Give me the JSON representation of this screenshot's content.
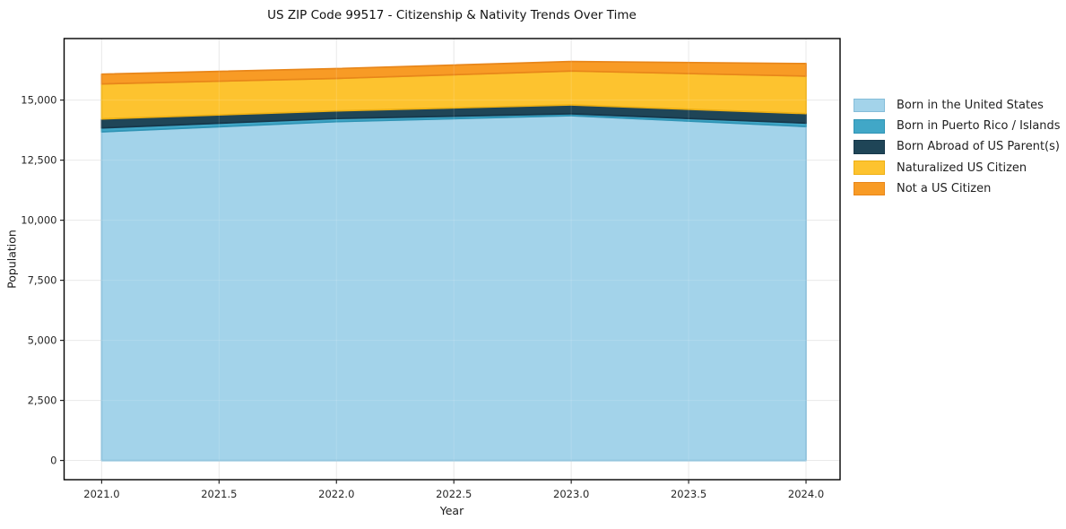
{
  "figure": {
    "title": "US ZIP Code 99517 - Citizenship & Nativity Trends Over Time"
  },
  "chart_data": {
    "type": "area",
    "stacked": true,
    "title": "US ZIP Code 99517 - Citizenship & Nativity Trends Over Time",
    "xlabel": "Year",
    "ylabel": "Population",
    "x": [
      2021,
      2022,
      2023,
      2024
    ],
    "series": [
      {
        "name": "Born in the United States",
        "values": [
          13680,
          14100,
          14350,
          13900
        ],
        "fill": "#a3d3ea",
        "edge": "#85bdd9"
      },
      {
        "name": "Born in Puerto Rico / Islands",
        "values": [
          160,
          130,
          80,
          140
        ],
        "fill": "#41a7c7",
        "edge": "#2f94b5"
      },
      {
        "name": "Born Abroad of US Parent(s)",
        "values": [
          375,
          320,
          370,
          395
        ],
        "fill": "#1f4557",
        "edge": "#16374a"
      },
      {
        "name": "Naturalized US Citizen",
        "values": [
          1455,
          1350,
          1410,
          1560
        ],
        "fill": "#fdc32f",
        "edge": "#eeb013"
      },
      {
        "name": "Not a US Citizen",
        "values": [
          410,
          410,
          395,
          525
        ],
        "fill": "#f89b25",
        "edge": "#e8861a"
      }
    ],
    "stack_totals": [
      16080,
      16310,
      16605,
      16520
    ],
    "xticks": {
      "values": [
        2021.0,
        2021.5,
        2022.0,
        2022.5,
        2023.0,
        2023.5,
        2024.0
      ],
      "labels": [
        "2021.0",
        "2021.5",
        "2022.0",
        "2022.5",
        "2023.0",
        "2023.5",
        "2024.0"
      ]
    },
    "yticks": {
      "values": [
        0,
        2500,
        5000,
        7500,
        10000,
        12500,
        15000
      ],
      "labels": [
        "0",
        "2,500",
        "5,000",
        "7,500",
        "10,000",
        "12,500",
        "15,000"
      ]
    },
    "xlim": [
      2020.84,
      2024.145
    ],
    "ylim": [
      -800,
      17560
    ],
    "grid": true,
    "legend_position": "right",
    "legend_entries": [
      "Born in the United States",
      "Born in Puerto Rico / Islands",
      "Born Abroad of US Parent(s)",
      "Naturalized US Citizen",
      "Not a US Citizen"
    ]
  }
}
